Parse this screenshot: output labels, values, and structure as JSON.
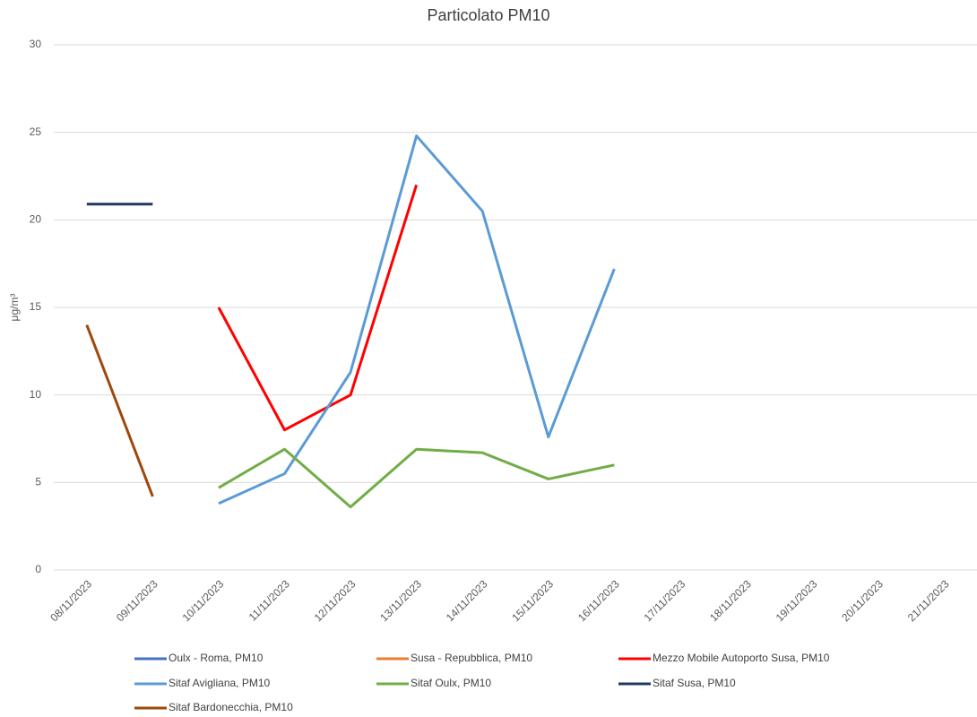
{
  "chart_data": {
    "type": "line",
    "title": "Particolato PM10",
    "y_label": "μg/m³",
    "categories": [
      "08/11/2023",
      "09/11/2023",
      "10/11/2023",
      "11/11/2023",
      "12/11/2023",
      "13/11/2023",
      "14/11/2023",
      "15/11/2023",
      "16/11/2023",
      "17/11/2023",
      "18/11/2023",
      "19/11/2023",
      "20/11/2023",
      "21/11/2023"
    ],
    "series": [
      {
        "name": "Oulx - Roma, PM10",
        "color": "#4472c4",
        "values": [
          null,
          null,
          null,
          null,
          null,
          null,
          null,
          null,
          null,
          null,
          null,
          null,
          null,
          null
        ]
      },
      {
        "name": "Susa - Repubblica, PM10",
        "color": "#ed7d31",
        "values": [
          null,
          null,
          null,
          null,
          null,
          null,
          null,
          null,
          null,
          null,
          null,
          null,
          null,
          null
        ]
      },
      {
        "name": "Mezzo Mobile Autoporto Susa, PM10",
        "color": "#ff0000",
        "values": [
          null,
          null,
          15,
          8,
          10,
          22,
          null,
          null,
          null,
          null,
          null,
          null,
          null,
          null
        ]
      },
      {
        "name": "Sitaf Avigliana, PM10",
        "color": "#5b9bd5",
        "values": [
          null,
          null,
          3.8,
          5.5,
          11.3,
          24.8,
          20.5,
          7.6,
          17.2,
          null,
          null,
          null,
          null,
          null
        ]
      },
      {
        "name": "Sitaf Oulx, PM10",
        "color": "#70ad47",
        "values": [
          null,
          null,
          4.7,
          6.9,
          3.6,
          6.9,
          6.7,
          5.2,
          6.0,
          null,
          null,
          null,
          null,
          null
        ]
      },
      {
        "name": "Sitaf Susa, PM10",
        "color": "#203864",
        "values": [
          20.9,
          20.9,
          null,
          null,
          null,
          null,
          null,
          null,
          null,
          null,
          null,
          null,
          null,
          null
        ]
      },
      {
        "name": "Sitaf Bardonecchia, PM10",
        "color": "#9e480e",
        "values": [
          14.0,
          4.2,
          null,
          null,
          null,
          null,
          null,
          null,
          null,
          null,
          null,
          null,
          null,
          null
        ]
      }
    ],
    "ylim": [
      0,
      30
    ],
    "yticks": [
      0,
      5,
      10,
      15,
      20,
      25,
      30
    ],
    "grid": true,
    "legend": "bottom"
  }
}
